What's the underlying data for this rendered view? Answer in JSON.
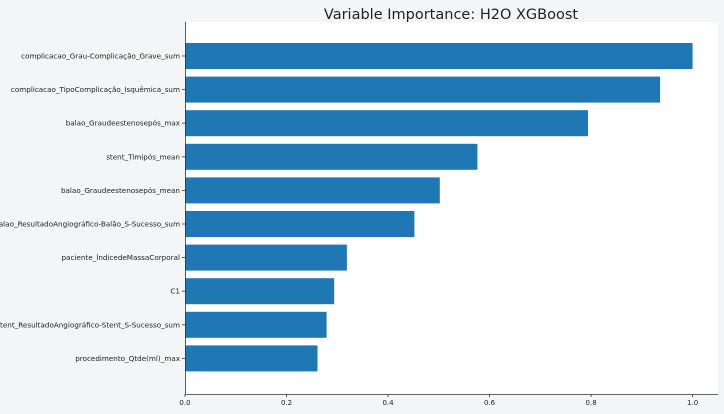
{
  "chart_data": {
    "type": "bar",
    "orientation": "horizontal",
    "title": "Variable Importance: H2O XGBoost",
    "categories": [
      "complicacao_Grau-Complicação_Grave_sum",
      "complicacao_TipoComplicação_Isquêmica_sum",
      "balao_Graudeestenosepós_max",
      "stent_Timipós_mean",
      "balao_Graudeestenosepós_mean",
      "balao_ResultadoAngiográfico-Balão_S-Sucesso_sum",
      "paciente_ÍndicedeMassaCorporal",
      "C1",
      "stent_ResultadoAngiográfico-Stent_S-Sucesso_sum",
      "procedimento_Qtde(ml)_max"
    ],
    "values": [
      1.0,
      0.936,
      0.794,
      0.576,
      0.502,
      0.452,
      0.319,
      0.294,
      0.279,
      0.261
    ],
    "xlim": [
      0,
      1.05
    ],
    "xticks": [
      "0.0",
      "0.2",
      "0.4",
      "0.6",
      "0.8",
      "1.0"
    ],
    "xlabel": "",
    "ylabel": "",
    "grid": false,
    "bar_color": "#1f77b4",
    "plot_background": "#ffffff",
    "figure_background": "#f4f5f7"
  }
}
